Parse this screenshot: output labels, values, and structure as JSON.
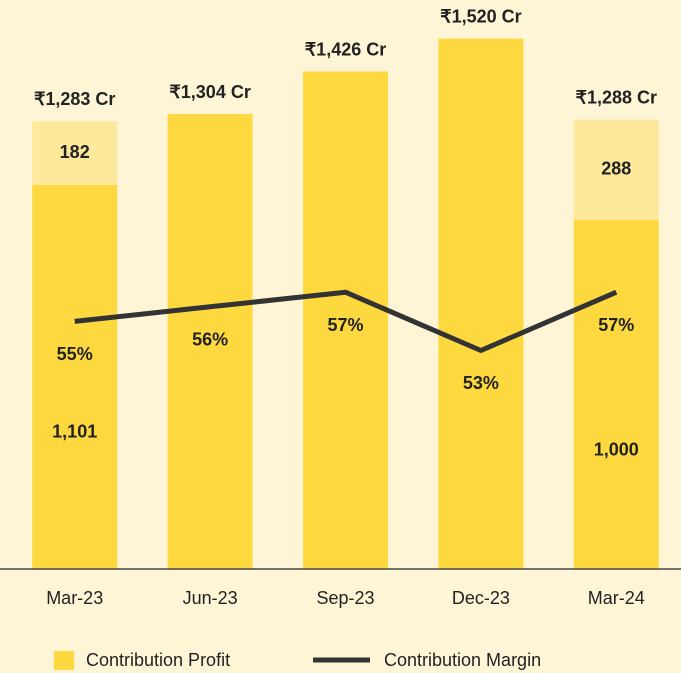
{
  "chart_data": {
    "type": "bar",
    "categories": [
      "Mar-23",
      "Jun-23",
      "Sep-23",
      "Dec-23",
      "Mar-24"
    ],
    "series": [
      {
        "name": "Contribution Profit",
        "color": "#fdd83f",
        "values": [
          1101,
          1304,
          1426,
          1520,
          1000
        ],
        "value_labels": [
          "1,101",
          null,
          null,
          null,
          "1,000"
        ]
      },
      {
        "color": "#fde99b",
        "values": [
          182,
          null,
          null,
          null,
          288
        ]
      },
      {
        "name": "Contribution Margin",
        "type": "line",
        "axis": "y2",
        "color": "#333333",
        "values": [
          55,
          56,
          57,
          53,
          57
        ],
        "value_labels": [
          "55%",
          "56%",
          "57%",
          "53%",
          "57%"
        ]
      }
    ],
    "total_labels": [
      "₹1,283 Cr",
      "₹1,304 Cr",
      "₹1,426 Cr",
      "₹1,520 Cr",
      "₹1,288 Cr"
    ],
    "stacked": true,
    "ylim": [
      0,
      1545
    ],
    "y2lim": [
      38,
      75
    ]
  }
}
